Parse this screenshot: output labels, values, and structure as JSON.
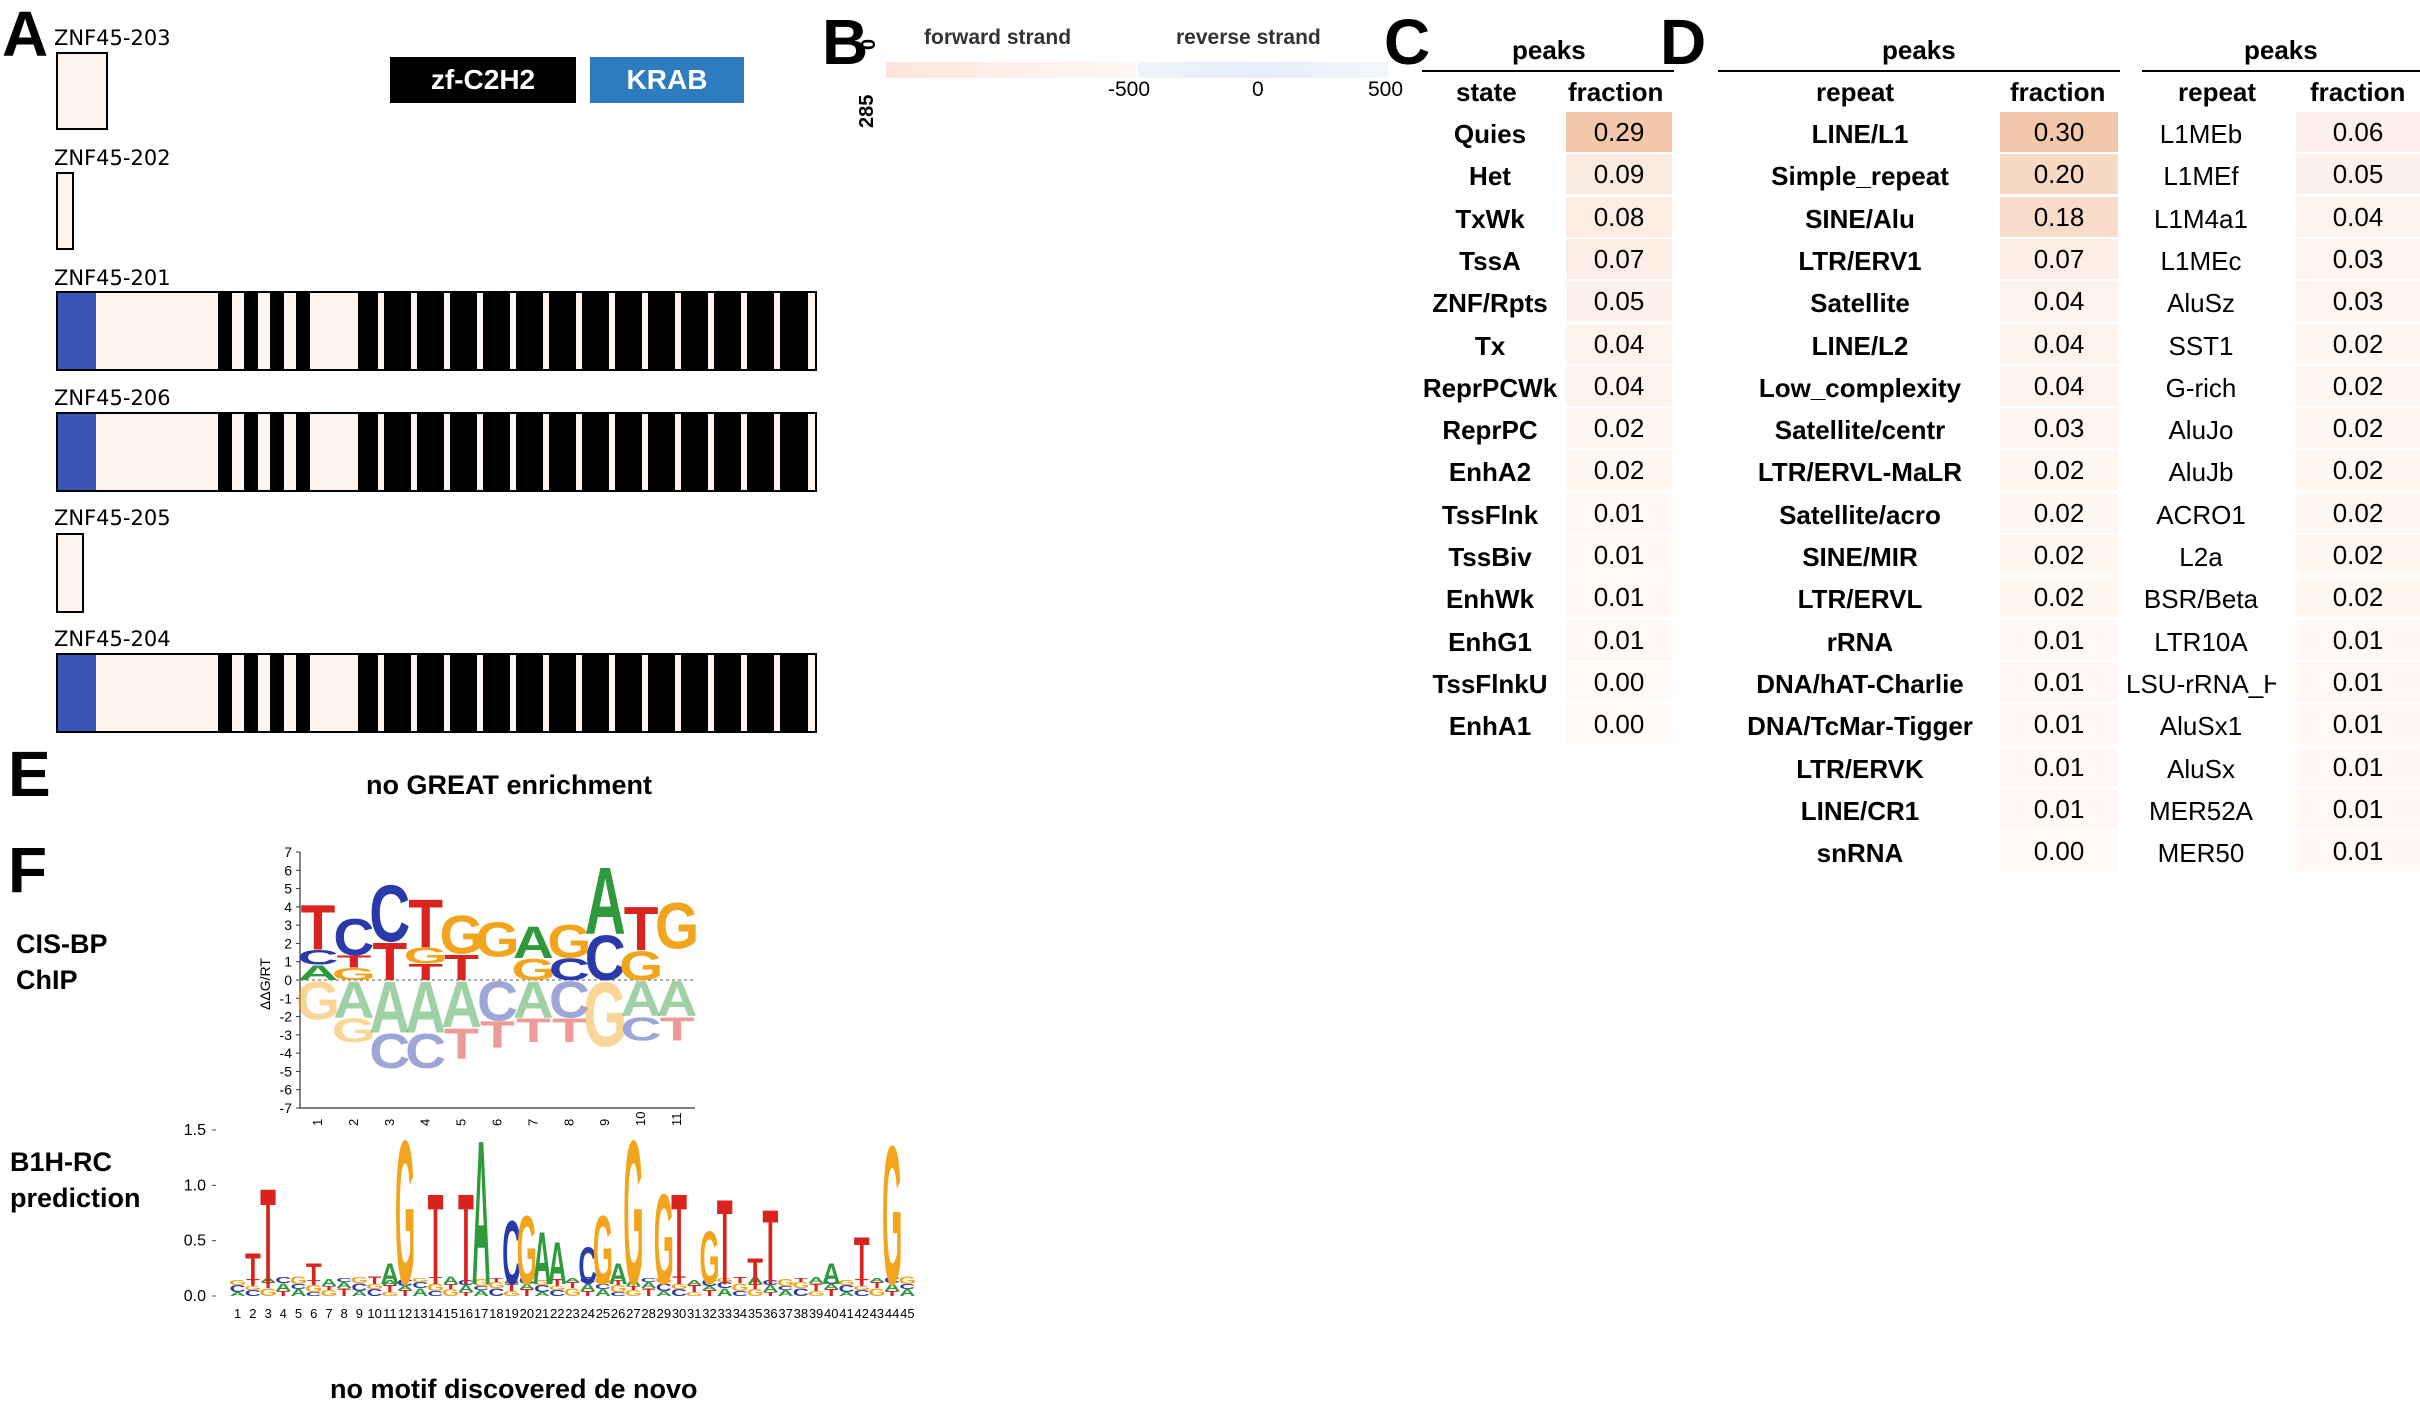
{
  "panel_letters": {
    "A": "A",
    "B": "B",
    "C": "C",
    "D": "D",
    "E": "E",
    "F": "F"
  },
  "panelA": {
    "legend": [
      {
        "label": "zf-C2H2",
        "color": "#000000"
      },
      {
        "label": "KRAB",
        "color": "#2f7bbf"
      }
    ],
    "isoforms": [
      "ZNF45-203",
      "ZNF45-202",
      "ZNF45-201",
      "ZNF45-206",
      "ZNF45-205",
      "ZNF45-204"
    ],
    "colors": {
      "box_fill": "#fdf4ef",
      "krab": "#3b57b5",
      "znf": "#000000"
    }
  },
  "panelB": {
    "forward_label": "forward strand",
    "reverse_label": "reverse strand",
    "y_top": "0",
    "y_bottom": "285",
    "x_ticks": [
      "-500",
      "0",
      "500"
    ]
  },
  "panelC": {
    "title": "peaks",
    "col1": "state",
    "col2": "fraction",
    "rows": [
      [
        "Quies",
        "0.29"
      ],
      [
        "Het",
        "0.09"
      ],
      [
        "TxWk",
        "0.08"
      ],
      [
        "TssA",
        "0.07"
      ],
      [
        "ZNF/Rpts",
        "0.05"
      ],
      [
        "Tx",
        "0.04"
      ],
      [
        "ReprPCWk",
        "0.04"
      ],
      [
        "ReprPC",
        "0.02"
      ],
      [
        "EnhA2",
        "0.02"
      ],
      [
        "TssFlnk",
        "0.01"
      ],
      [
        "TssBiv",
        "0.01"
      ],
      [
        "EnhWk",
        "0.01"
      ],
      [
        "EnhG1",
        "0.01"
      ],
      [
        "TssFlnkU",
        "0.00"
      ],
      [
        "EnhA1",
        "0.00"
      ]
    ]
  },
  "panelD": {
    "left": {
      "title": "peaks",
      "col1": "repeat",
      "col2": "fraction",
      "rows": [
        [
          "LINE/L1",
          "0.30"
        ],
        [
          "Simple_repeat",
          "0.20"
        ],
        [
          "SINE/Alu",
          "0.18"
        ],
        [
          "LTR/ERV1",
          "0.07"
        ],
        [
          "Satellite",
          "0.04"
        ],
        [
          "LINE/L2",
          "0.04"
        ],
        [
          "Low_complexity",
          "0.04"
        ],
        [
          "Satellite/centr",
          "0.03"
        ],
        [
          "LTR/ERVL-MaLR",
          "0.02"
        ],
        [
          "Satellite/acro",
          "0.02"
        ],
        [
          "SINE/MIR",
          "0.02"
        ],
        [
          "LTR/ERVL",
          "0.02"
        ],
        [
          "rRNA",
          "0.01"
        ],
        [
          "DNA/hAT-Charlie",
          "0.01"
        ],
        [
          "DNA/TcMar-Tigger",
          "0.01"
        ],
        [
          "LTR/ERVK",
          "0.01"
        ],
        [
          "LINE/CR1",
          "0.01"
        ],
        [
          "snRNA",
          "0.00"
        ]
      ]
    },
    "right": {
      "title": "peaks",
      "col1": "repeat",
      "col2": "fraction",
      "rows": [
        [
          "L1MEb",
          "0.06"
        ],
        [
          "L1MEf",
          "0.05"
        ],
        [
          "L1M4a1",
          "0.04"
        ],
        [
          "L1MEc",
          "0.03"
        ],
        [
          "AluSz",
          "0.03"
        ],
        [
          "SST1",
          "0.02"
        ],
        [
          "G-rich",
          "0.02"
        ],
        [
          "AluJo",
          "0.02"
        ],
        [
          "AluJb",
          "0.02"
        ],
        [
          "ACRO1",
          "0.02"
        ],
        [
          "L2a",
          "0.02"
        ],
        [
          "BSR/Beta",
          "0.02"
        ],
        [
          "LTR10A",
          "0.01"
        ],
        [
          "LSU-rRNA_Hsa",
          "0.01"
        ],
        [
          "AluSx1",
          "0.01"
        ],
        [
          "AluSx",
          "0.01"
        ],
        [
          "MER52A",
          "0.01"
        ],
        [
          "MER50",
          "0.01"
        ]
      ]
    }
  },
  "panelE": {
    "caption": "no GREAT enrichment"
  },
  "panelF": {
    "label1_line1": "CIS-BP",
    "label1_line2": "ChIP",
    "label2_line1": "B1H-RC",
    "label2_line2": "prediction",
    "ylabel1": "ΔΔG/RT",
    "logo1_yticks": [
      "7",
      "6",
      "5",
      "4",
      "3",
      "2",
      "1",
      "0",
      "-1",
      "-2",
      "-3",
      "-4",
      "-5",
      "-6",
      "-7"
    ],
    "logo1_xticks": [
      "1",
      "2",
      "3",
      "4",
      "5",
      "6",
      "7",
      "8",
      "9",
      "10",
      "11"
    ],
    "logo1_top": "TCCTGGAGATG",
    "logo1_bottom": "GAAAACACGAA",
    "logo2_yticks": [
      "1.5",
      "1.0",
      "0.5",
      "0.0"
    ],
    "logo2_xticks": [
      "1",
      "2",
      "3",
      "4",
      "5",
      "6",
      "7",
      "8",
      "9",
      "10",
      "11",
      "12",
      "13",
      "14",
      "15",
      "16",
      "17",
      "18",
      "19",
      "20",
      "21",
      "22",
      "23",
      "24",
      "25",
      "26",
      "27",
      "28",
      "29",
      "30",
      "31",
      "32",
      "33",
      "34",
      "35",
      "36",
      "37",
      "38",
      "39",
      "40",
      "41",
      "42",
      "43",
      "44",
      "45"
    ],
    "logo2_letters": [
      {
        "pos": 2,
        "b": "T",
        "h": 0.4
      },
      {
        "pos": 3,
        "b": "T",
        "h": 1.0
      },
      {
        "pos": 6,
        "b": "T",
        "h": 0.3
      },
      {
        "pos": 11,
        "b": "A",
        "h": 0.3
      },
      {
        "pos": 12,
        "b": "G",
        "h": 1.45
      },
      {
        "pos": 14,
        "b": "T",
        "h": 0.95
      },
      {
        "pos": 16,
        "b": "T",
        "h": 0.95
      },
      {
        "pos": 17,
        "b": "A",
        "h": 1.45
      },
      {
        "pos": 19,
        "b": "C",
        "h": 0.7
      },
      {
        "pos": 20,
        "b": "G",
        "h": 0.75
      },
      {
        "pos": 21,
        "b": "A",
        "h": 0.6
      },
      {
        "pos": 22,
        "b": "A",
        "h": 0.5
      },
      {
        "pos": 24,
        "b": "C",
        "h": 0.45
      },
      {
        "pos": 25,
        "b": "G",
        "h": 0.75
      },
      {
        "pos": 26,
        "b": "A",
        "h": 0.3
      },
      {
        "pos": 27,
        "b": "G",
        "h": 1.45
      },
      {
        "pos": 29,
        "b": "G",
        "h": 0.95
      },
      {
        "pos": 30,
        "b": "T",
        "h": 0.95
      },
      {
        "pos": 32,
        "b": "G",
        "h": 0.6
      },
      {
        "pos": 33,
        "b": "T",
        "h": 0.9
      },
      {
        "pos": 35,
        "b": "T",
        "h": 0.35
      },
      {
        "pos": 36,
        "b": "T",
        "h": 0.8
      },
      {
        "pos": 40,
        "b": "A",
        "h": 0.3
      },
      {
        "pos": 42,
        "b": "T",
        "h": 0.55
      },
      {
        "pos": 44,
        "b": "G",
        "h": 1.4
      }
    ],
    "caption": "no motif discovered de novo"
  }
}
